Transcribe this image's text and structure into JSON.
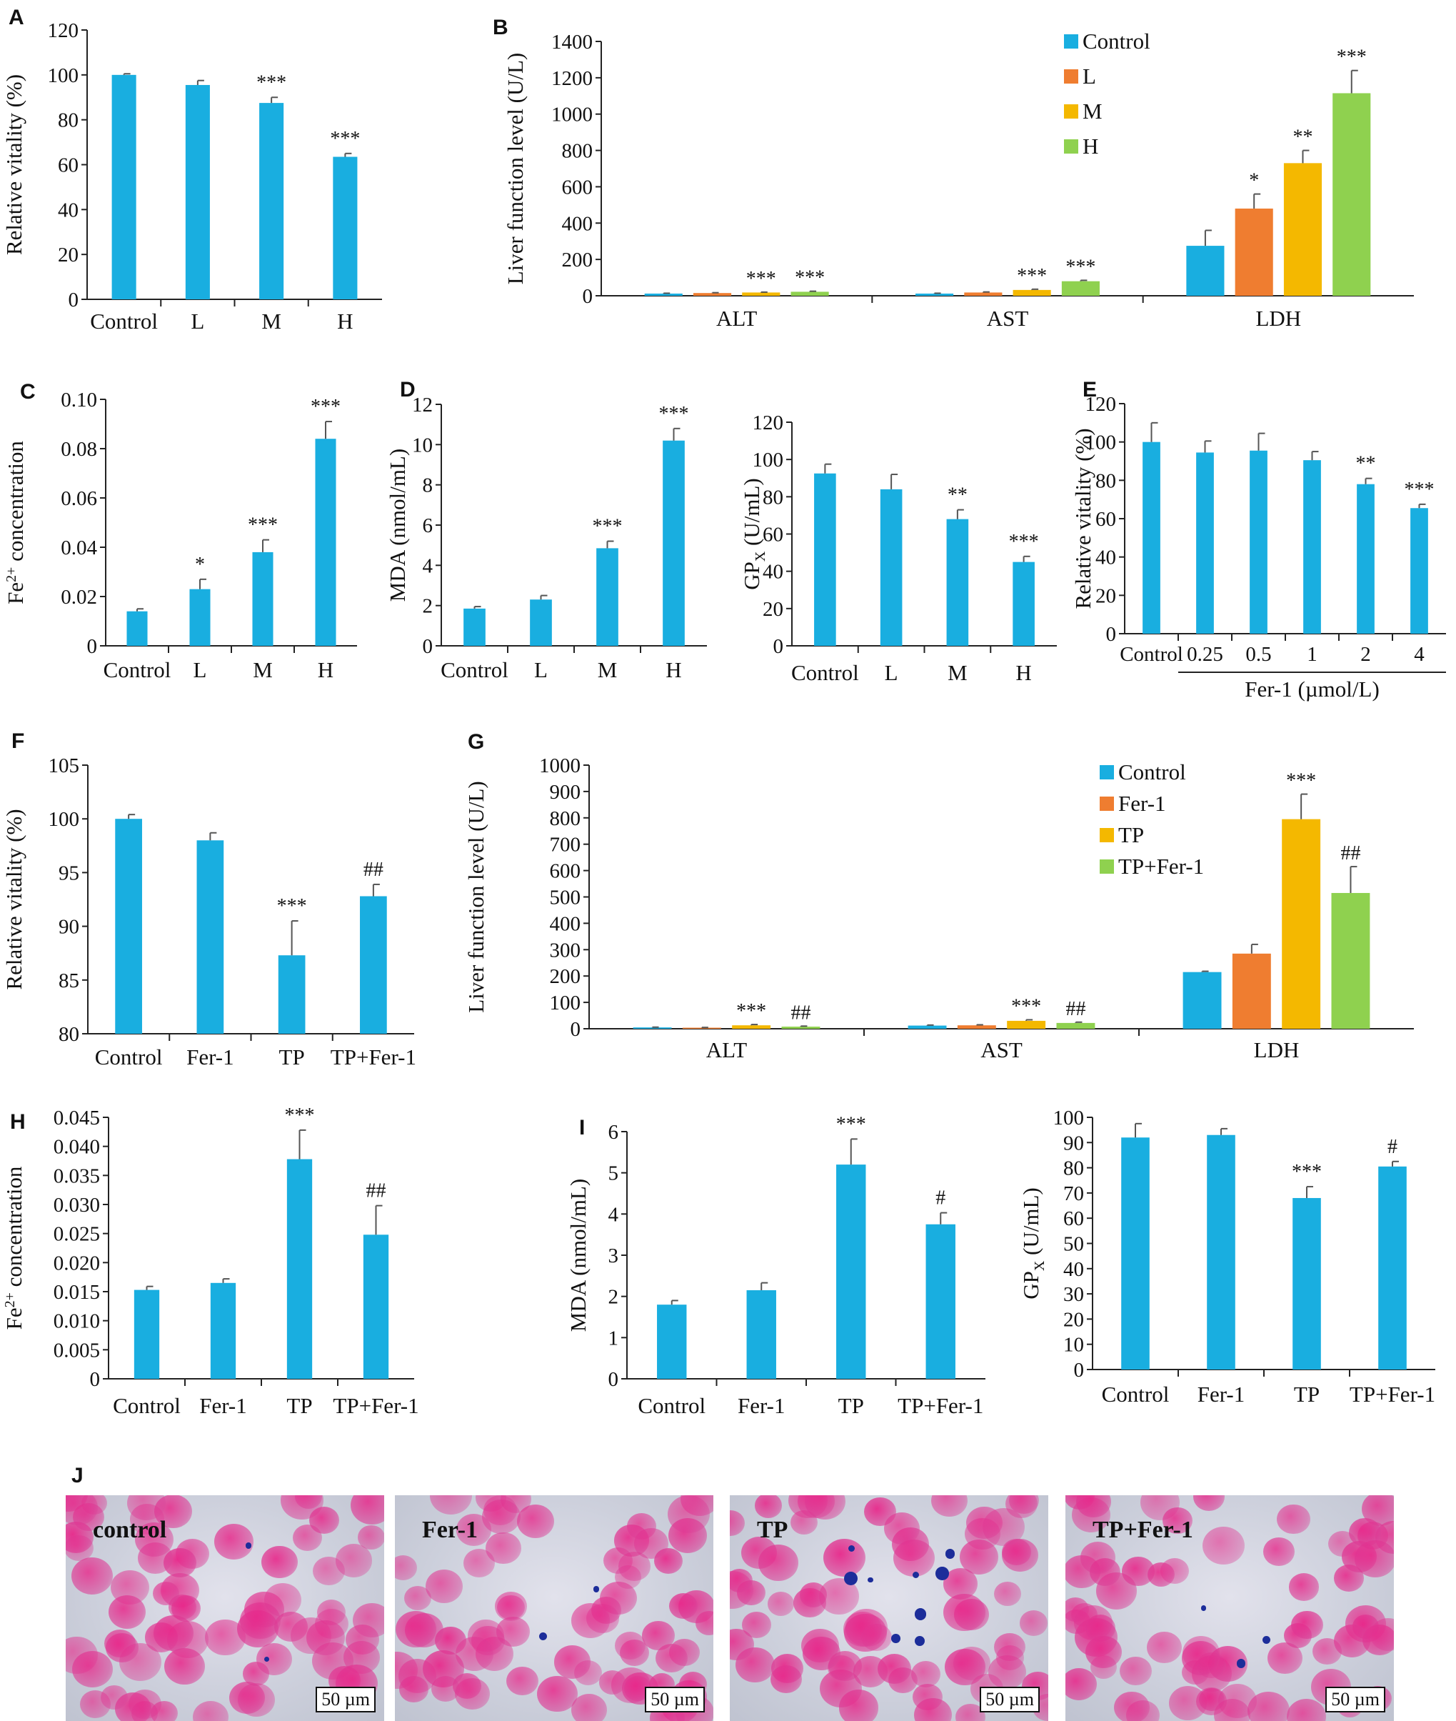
{
  "colors": {
    "bar": "#19aee0",
    "control": "#19aee0",
    "low": "#ef7d30",
    "mid": "#f4b800",
    "high": "#8fd14f",
    "cell": "#e8278a",
    "stain": "#1c2d9a"
  },
  "panel_labels": [
    "A",
    "B",
    "C",
    "D",
    "E",
    "F",
    "G",
    "H",
    "I",
    "J"
  ],
  "micrographs": [
    {
      "label": "control",
      "scale": "50 µm"
    },
    {
      "label": "Fer-1",
      "scale": "50 µm"
    },
    {
      "label": "TP",
      "scale": "50 µm"
    },
    {
      "label": "TP+Fer-1",
      "scale": "50 µm"
    }
  ],
  "chart_data": [
    {
      "panel": "A",
      "type": "bar",
      "ylabel": "Relative vitality (%)",
      "ylim": [
        0,
        120
      ],
      "yticks": [
        "0",
        "20",
        "40",
        "60",
        "80",
        "100",
        "120"
      ],
      "categories": [
        "Control",
        "L",
        "M",
        "H"
      ],
      "values": [
        100,
        95.5,
        87.5,
        63.5
      ],
      "errors": [
        0.5,
        2,
        2.5,
        1.5
      ],
      "significance": [
        "",
        "",
        "***",
        "***"
      ]
    },
    {
      "panel": "B",
      "type": "bar",
      "ylabel": "Liver function level (U/L)",
      "ylim": [
        0,
        1400
      ],
      "yticks": [
        "0",
        "200",
        "400",
        "600",
        "800",
        "1000",
        "1200",
        "1400"
      ],
      "categories": [
        "ALT",
        "AST",
        "LDH"
      ],
      "series": [
        {
          "name": "Control",
          "values": [
            12,
            12,
            275
          ],
          "errors": [
            2,
            2,
            85
          ],
          "significance": [
            "",
            "",
            ""
          ]
        },
        {
          "name": "L",
          "values": [
            15,
            18,
            480
          ],
          "errors": [
            2,
            3,
            80
          ],
          "significance": [
            "",
            "",
            "*"
          ]
        },
        {
          "name": "M",
          "values": [
            18,
            32,
            730
          ],
          "errors": [
            2,
            4,
            70
          ],
          "significance": [
            "***",
            "***",
            "**"
          ]
        },
        {
          "name": "H",
          "values": [
            22,
            80,
            1115
          ],
          "errors": [
            3,
            5,
            125
          ],
          "significance": [
            "***",
            "***",
            "***"
          ]
        }
      ],
      "legend": "top-right"
    },
    {
      "panel": "C",
      "type": "bar",
      "ylabel": "Fe2+ concentration",
      "ylim": [
        0,
        0.1
      ],
      "yticks": [
        "0",
        "0.02",
        "0.04",
        "0.06",
        "0.08",
        "0.10"
      ],
      "categories": [
        "Control",
        "L",
        "M",
        "H"
      ],
      "values": [
        0.014,
        0.023,
        0.038,
        0.084
      ],
      "errors": [
        0.001,
        0.004,
        0.005,
        0.007
      ],
      "significance": [
        "",
        "*",
        "***",
        "***"
      ]
    },
    {
      "panel": "D",
      "type": "bar",
      "ylabel": "MDA (nmol/mL)",
      "ylim": [
        0,
        12
      ],
      "yticks": [
        "0",
        "2",
        "4",
        "6",
        "8",
        "10",
        "12"
      ],
      "categories": [
        "Control",
        "L",
        "M",
        "H"
      ],
      "values": [
        1.85,
        2.3,
        4.85,
        10.2
      ],
      "errors": [
        0.1,
        0.2,
        0.35,
        0.6
      ],
      "significance": [
        "",
        "",
        "***",
        "***"
      ]
    },
    {
      "panel": "D2",
      "type": "bar",
      "ylabel": "GPX (U/mL)",
      "ylim": [
        0,
        120
      ],
      "yticks": [
        "0",
        "20",
        "40",
        "60",
        "80",
        "100",
        "120"
      ],
      "categories": [
        "Control",
        "L",
        "M",
        "H"
      ],
      "values": [
        92.5,
        84,
        68,
        45
      ],
      "errors": [
        5,
        8,
        5,
        3
      ],
      "significance": [
        "",
        "",
        "**",
        "***"
      ]
    },
    {
      "panel": "E",
      "type": "bar",
      "ylabel": "Relative vitality (%)",
      "ylim": [
        0,
        120
      ],
      "yticks": [
        "0",
        "20",
        "40",
        "60",
        "80",
        "100",
        "120"
      ],
      "categories": [
        "Control",
        "0.25",
        "0.5",
        "1",
        "2",
        "4"
      ],
      "values": [
        100,
        94.5,
        95.5,
        90.5,
        78,
        65.5
      ],
      "errors": [
        10,
        6,
        9,
        4.5,
        3,
        2
      ],
      "significance": [
        "",
        "",
        "",
        "",
        "**",
        "***"
      ],
      "xlabel": "Fer-1 (µmol/L)"
    },
    {
      "panel": "F",
      "type": "bar",
      "ylabel": "Relative vitality (%)",
      "ylim": [
        80,
        105
      ],
      "yticks": [
        "80",
        "85",
        "90",
        "95",
        "100",
        "105"
      ],
      "categories": [
        "Control",
        "Fer-1",
        "TP",
        "TP+Fer-1"
      ],
      "values": [
        100,
        98,
        87.3,
        92.8
      ],
      "errors": [
        0.4,
        0.7,
        3.2,
        1.1
      ],
      "significance": [
        "",
        "",
        "***",
        "##"
      ]
    },
    {
      "panel": "G",
      "type": "bar",
      "ylabel": "Liver function level (U/L)",
      "ylim": [
        0,
        1000
      ],
      "yticks": [
        "0",
        "100",
        "200",
        "300",
        "400",
        "500",
        "600",
        "700",
        "800",
        "900",
        "1000"
      ],
      "categories": [
        "ALT",
        "AST",
        "LDH"
      ],
      "series": [
        {
          "name": "Control",
          "values": [
            5,
            12,
            215
          ],
          "errors": [
            1,
            2,
            3
          ],
          "significance": [
            "",
            "",
            ""
          ]
        },
        {
          "name": "Fer-1",
          "values": [
            4,
            13,
            285
          ],
          "errors": [
            1,
            2,
            35
          ],
          "significance": [
            "",
            "",
            ""
          ]
        },
        {
          "name": "TP",
          "values": [
            13,
            30,
            795
          ],
          "errors": [
            3,
            4,
            95
          ],
          "significance": [
            "***",
            "***",
            "***"
          ]
        },
        {
          "name": "TP+Fer-1",
          "values": [
            8,
            22,
            515
          ],
          "errors": [
            2,
            3,
            100
          ],
          "significance": [
            "##",
            "##",
            "##"
          ]
        }
      ],
      "legend": "top-right"
    },
    {
      "panel": "H",
      "type": "bar",
      "ylabel": "Fe2+ concentration",
      "ylim": [
        0,
        0.045
      ],
      "yticks": [
        "0",
        "0.005",
        "0.010",
        "0.015",
        "0.020",
        "0.025",
        "0.030",
        "0.035",
        "0.040",
        "0.045"
      ],
      "categories": [
        "Control",
        "Fer-1",
        "TP",
        "TP+Fer-1"
      ],
      "values": [
        0.0153,
        0.0165,
        0.0378,
        0.0248
      ],
      "errors": [
        0.0006,
        0.0007,
        0.005,
        0.005
      ],
      "significance": [
        "",
        "",
        "***",
        "##"
      ]
    },
    {
      "panel": "I",
      "type": "bar",
      "ylabel": "MDA (nmol/mL)",
      "ylim": [
        0,
        6
      ],
      "yticks": [
        "0",
        "1",
        "2",
        "3",
        "4",
        "5",
        "6"
      ],
      "categories": [
        "Control",
        "Fer-1",
        "TP",
        "TP+Fer-1"
      ],
      "values": [
        1.8,
        2.15,
        5.2,
        3.75
      ],
      "errors": [
        0.1,
        0.18,
        0.62,
        0.28
      ],
      "significance": [
        "",
        "",
        "***",
        "#"
      ]
    },
    {
      "panel": "I2",
      "type": "bar",
      "ylabel": "GPX (U/mL)",
      "ylim": [
        0,
        100
      ],
      "yticks": [
        "0",
        "10",
        "20",
        "30",
        "40",
        "50",
        "60",
        "70",
        "80",
        "90",
        "100"
      ],
      "categories": [
        "Control",
        "Fer-1",
        "TP",
        "TP+Fer-1"
      ],
      "values": [
        92,
        93,
        68,
        80.5
      ],
      "errors": [
        5.5,
        2.5,
        4.5,
        2
      ],
      "significance": [
        "",
        "",
        "***",
        "#"
      ]
    }
  ]
}
